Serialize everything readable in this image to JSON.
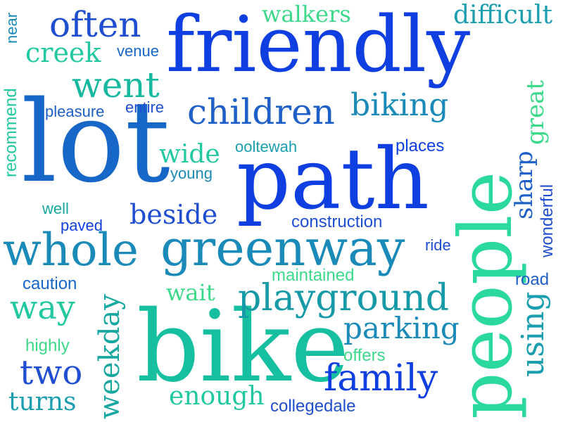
{
  "words": [
    {
      "key": "friendly",
      "text": "friendly",
      "color": "#0f3fe0"
    },
    {
      "key": "lot",
      "text": "lot",
      "color": "#1767c9"
    },
    {
      "key": "path",
      "text": "path",
      "color": "#0f3fe0"
    },
    {
      "key": "people",
      "text": "people",
      "color": "#2bd9a0"
    },
    {
      "key": "bike",
      "text": "bike",
      "color": "#16bfa0"
    },
    {
      "key": "greenway",
      "text": "greenway",
      "color": "#1a8ab8"
    },
    {
      "key": "whole",
      "text": "whole",
      "color": "#1a8ab8"
    },
    {
      "key": "playground",
      "text": "playground",
      "color": "#169aa8"
    },
    {
      "key": "children",
      "text": "children",
      "color": "#1f5fc8"
    },
    {
      "key": "often",
      "text": "often",
      "color": "#1f4fd0"
    },
    {
      "key": "went",
      "text": "went",
      "color": "#16b8a0"
    },
    {
      "key": "creek",
      "text": "creek",
      "color": "#22c9a0"
    },
    {
      "key": "walkers",
      "text": "walkers",
      "color": "#3dd98a"
    },
    {
      "key": "difficult",
      "text": "difficult",
      "color": "#1a9eb0"
    },
    {
      "key": "near",
      "text": "near",
      "color": "#1a8ab8"
    },
    {
      "key": "venue",
      "text": "venue",
      "color": "#1767c9"
    },
    {
      "key": "biking",
      "text": "biking",
      "color": "#1a8ab8"
    },
    {
      "key": "pleasure",
      "text": "pleasure",
      "color": "#1f5fc8"
    },
    {
      "key": "entire",
      "text": "entire",
      "color": "#1f4fd0"
    },
    {
      "key": "recommend",
      "text": "recommend",
      "color": "#22c9a0"
    },
    {
      "key": "wide",
      "text": "wide",
      "color": "#22c9a0"
    },
    {
      "key": "young",
      "text": "young",
      "color": "#1a8ab8"
    },
    {
      "key": "ooltewah",
      "text": "ooltewah",
      "color": "#1a9eb0"
    },
    {
      "key": "places",
      "text": "places",
      "color": "#0f3fe0"
    },
    {
      "key": "sharp",
      "text": "sharp",
      "color": "#1f5fc8"
    },
    {
      "key": "great",
      "text": "great",
      "color": "#3dd98a"
    },
    {
      "key": "wonderful",
      "text": "wonderful",
      "color": "#1f4fd0"
    },
    {
      "key": "beside",
      "text": "beside",
      "color": "#1f4fd0"
    },
    {
      "key": "well",
      "text": "well",
      "color": "#16a8a0"
    },
    {
      "key": "paved",
      "text": "paved",
      "color": "#0f3fe0"
    },
    {
      "key": "construction",
      "text": "construction",
      "color": "#1f4fd0"
    },
    {
      "key": "ride",
      "text": "ride",
      "color": "#1f4fd0"
    },
    {
      "key": "road",
      "text": "road",
      "color": "#1f5fc8"
    },
    {
      "key": "maintained",
      "text": "maintained",
      "color": "#3dd98a"
    },
    {
      "key": "caution",
      "text": "caution",
      "color": "#1767c9"
    },
    {
      "key": "way",
      "text": "way",
      "color": "#22c9a0"
    },
    {
      "key": "wait",
      "text": "wait",
      "color": "#3dd98a"
    },
    {
      "key": "weekday",
      "text": "weekday",
      "color": "#16a8a0"
    },
    {
      "key": "highly",
      "text": "highly",
      "color": "#3dd98a"
    },
    {
      "key": "two",
      "text": "two",
      "color": "#1f4fd0"
    },
    {
      "key": "turns",
      "text": "turns",
      "color": "#1a9eb0"
    },
    {
      "key": "parking",
      "text": "parking",
      "color": "#1a8ab8"
    },
    {
      "key": "offers",
      "text": "offers",
      "color": "#3dd98a"
    },
    {
      "key": "family",
      "text": "family",
      "color": "#0f3fe0"
    },
    {
      "key": "using",
      "text": "using",
      "color": "#1a9eb0"
    },
    {
      "key": "enough",
      "text": "enough",
      "color": "#22c9a0"
    },
    {
      "key": "collegedale",
      "text": "collegedale",
      "color": "#1f4fd0"
    }
  ]
}
